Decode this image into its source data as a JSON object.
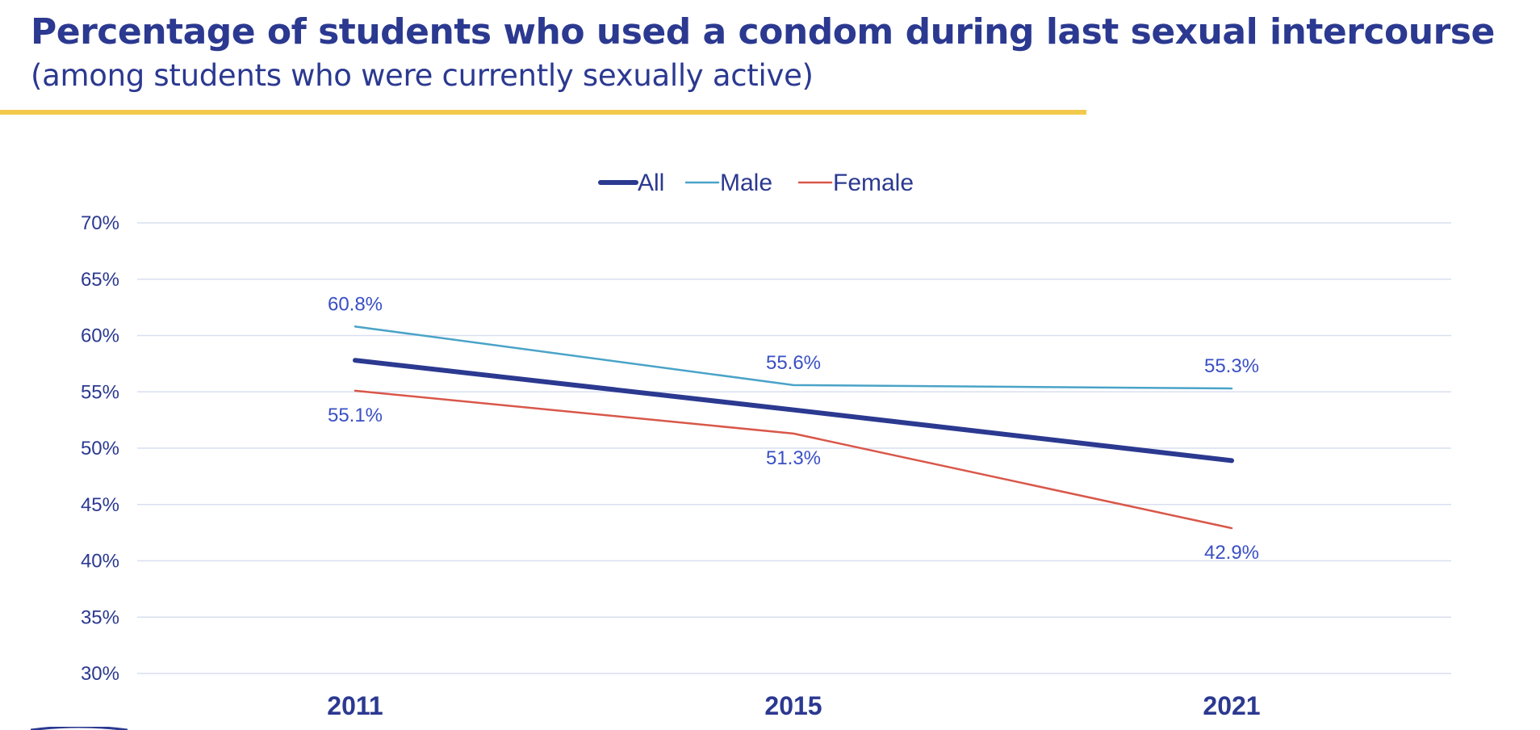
{
  "header": {
    "title": "Percentage of students who used a condom during last sexual intercourse",
    "subtitle": "(among students who were currently sexually active)"
  },
  "colors": {
    "title": "#2b3990",
    "rule": "#f2c94c",
    "grid": "#d9dff0",
    "tick": "#2b3990",
    "data_label": "#3a4fc4"
  },
  "chart_data": {
    "type": "line",
    "x": [
      "2011",
      "2015",
      "2021"
    ],
    "ylim": [
      30,
      70
    ],
    "y_ticks": [
      70,
      65,
      60,
      55,
      50,
      45,
      40,
      35,
      30
    ],
    "y_tick_format": "%",
    "grid": true,
    "legend_position": "top-center",
    "series": [
      {
        "name": "All",
        "values": [
          57.8,
          53.4,
          48.9
        ],
        "color": "#2b3990",
        "labels": false
      },
      {
        "name": "Male",
        "values": [
          60.8,
          55.6,
          55.3
        ],
        "color": "#4aa3c8",
        "labels": true,
        "label_side": "above"
      },
      {
        "name": "Female",
        "values": [
          55.1,
          51.3,
          42.9
        ],
        "color": "#d9574a",
        "labels": true,
        "label_side": "below"
      }
    ]
  }
}
